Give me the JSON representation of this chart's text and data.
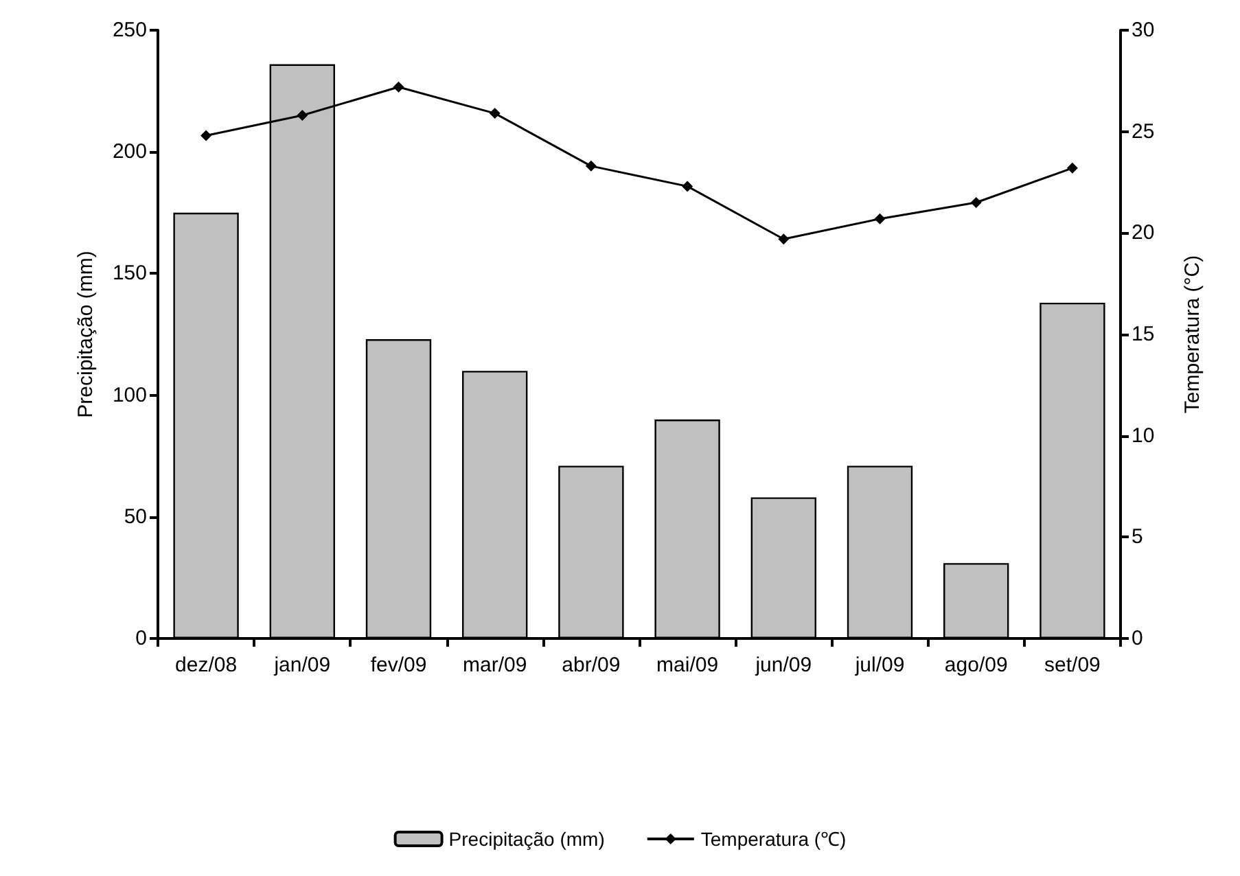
{
  "chart_data": {
    "type": "bar",
    "categories": [
      "dez/08",
      "jan/09",
      "fev/09",
      "mar/09",
      "abr/09",
      "mai/09",
      "jun/09",
      "jul/09",
      "ago/09",
      "set/09"
    ],
    "series": [
      {
        "name": "Precipitação (mm)",
        "color": "#c0c0c0",
        "values": [
          175,
          236,
          123,
          110,
          71,
          90,
          58,
          71,
          31,
          138
        ]
      },
      {
        "name": "Temperatura (℃)",
        "type": "line",
        "axis": "y2",
        "color": "#000000",
        "marker": "diamond",
        "values": [
          24.8,
          25.8,
          27.2,
          25.9,
          23.3,
          22.3,
          19.7,
          20.7,
          21.5,
          23.2
        ]
      }
    ],
    "ylabel": "Precipitação (mm)",
    "y2label": "Temperatura (°C)",
    "ylim": [
      0,
      250
    ],
    "yticks": [
      0,
      50,
      100,
      150,
      200,
      250
    ],
    "y2lim": [
      0,
      30
    ],
    "y2ticks": [
      0,
      5,
      10,
      15,
      20,
      25,
      30
    ],
    "grid": false,
    "legend": "bottom"
  }
}
